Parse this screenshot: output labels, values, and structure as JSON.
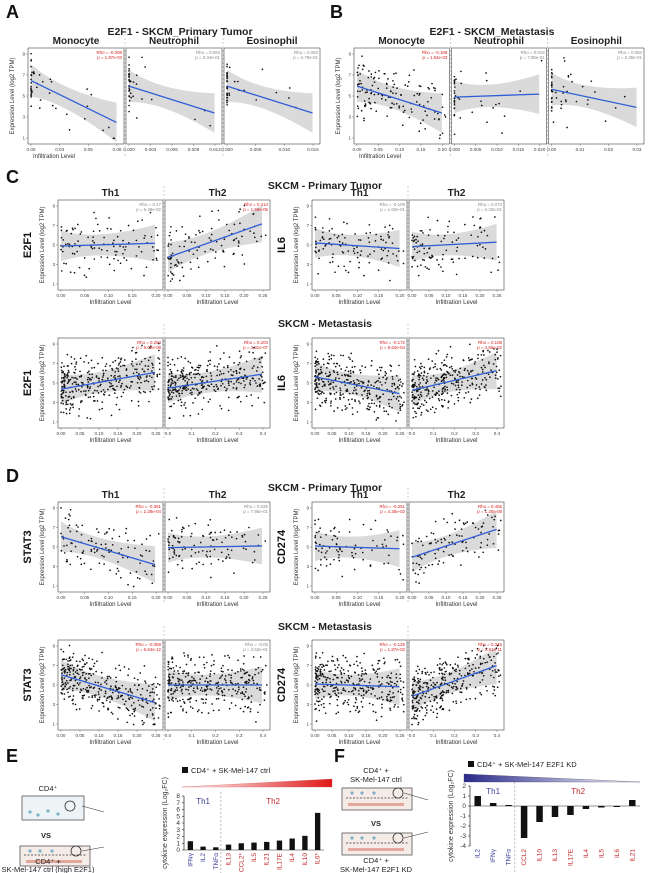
{
  "panels": {
    "A": {
      "letter": "A",
      "title": "E2F1 - SKCM_Primary Tumor"
    },
    "B": {
      "letter": "B",
      "title": "E2F1 - SKCM_Metastasis"
    },
    "C": {
      "letter": "C",
      "primary_title": "SKCM - Primary Tumor",
      "metastasis_title": "SKCM - Metastasis"
    },
    "D": {
      "letter": "D",
      "primary_title": "SKCM - Primary Tumor",
      "metastasis_title": "SKCM - Metastasis"
    },
    "E": {
      "letter": "E"
    },
    "F": {
      "letter": "F"
    }
  },
  "common": {
    "xlabel": "Infiltration Level",
    "ylabel": "Expression Level (log2 TPM)"
  },
  "colors": {
    "accent_blue": "#2f5fd6",
    "red": "#d62020",
    "band": "#d3d3d3",
    "th1": "#3b3b9a",
    "th2": "#c0262a"
  },
  "chart_data": [
    {
      "id": "A",
      "type": "scatter",
      "gene": "",
      "title": "E2F1 - SKCM_Primary Tumor",
      "xlabel": "Infiltration Level",
      "ylabel": "Expression Level (log2 TPM)",
      "facets": [
        {
          "name": "Monocyte",
          "rho": "Rho = -0.308",
          "p": "p = 1.87e-03",
          "sig": true,
          "xlim": [
            0,
            0.1
          ],
          "xticks": [
            "0.00",
            "0.03",
            "0.05",
            "0.08"
          ],
          "slope": -0.7,
          "n": 45,
          "seed": 11,
          "xdist": "left"
        },
        {
          "name": "Neutrophil",
          "rho": "Rho = 0.093",
          "p": "p = 3.34e-01",
          "sig": false,
          "xlim": [
            0,
            0.013
          ],
          "xticks": [
            "0.000",
            "0.003",
            "0.006",
            "0.009",
            "0.012"
          ],
          "slope": -0.45,
          "n": 40,
          "seed": 12,
          "xdist": "left"
        },
        {
          "name": "Eosinophil",
          "rho": "Rho = 0.063",
          "p": "p = 4.78e-01",
          "sig": false,
          "xlim": [
            0,
            0.016
          ],
          "xticks": [
            "0.000",
            "0.005",
            "0.010",
            "0.015"
          ],
          "slope": -0.45,
          "n": 40,
          "seed": 13,
          "xdist": "left"
        }
      ]
    },
    {
      "id": "B",
      "type": "scatter",
      "gene": "",
      "title": "E2F1 - SKCM_Metastasis",
      "xlabel": "Infiltration Level",
      "ylabel": "Expression Level (log2 TPM)",
      "facets": [
        {
          "name": "Monocyte",
          "rho": "Rho = -0.168",
          "p": "p = 1.54e-03",
          "sig": true,
          "xlim": [
            0,
            0.22
          ],
          "xticks": [
            "0.00",
            "0.05",
            "0.10",
            "0.15",
            "0.20"
          ],
          "slope": -0.45,
          "n": 140,
          "seed": 21,
          "xdist": "spread"
        },
        {
          "name": "Neutrophil",
          "rho": "Rho = 0.019",
          "p": "p = 7.85e-01",
          "sig": false,
          "xlim": [
            0,
            0.021
          ],
          "xticks": [
            "0.000",
            "0.005",
            "0.010",
            "0.015",
            "0.020"
          ],
          "slope": 0.05,
          "n": 40,
          "seed": 22,
          "xdist": "left"
        },
        {
          "name": "Eosinophil",
          "rho": "Rho = 0.084",
          "p": "p = 2.36e-01",
          "sig": false,
          "xlim": [
            0,
            0.032
          ],
          "xticks": [
            "0.00",
            "0.01",
            "0.02",
            "0.03"
          ],
          "slope": -0.3,
          "n": 50,
          "seed": 23,
          "xdist": "left"
        }
      ]
    },
    {
      "id": "C-prim-E2F1",
      "type": "scatter",
      "gene": "E2F1",
      "xlabel": "Infiltration Level",
      "ylabel": "Expression Level (log2 TPM)",
      "facets": [
        {
          "name": "Th1",
          "rho": "Rho = 0.17",
          "p": "p = 6.48e-02",
          "sig": false,
          "xlim": [
            0,
            0.21
          ],
          "xticks": [
            "0.00",
            "0.05",
            "0.10",
            "0.15",
            "0.20"
          ],
          "slope": 0.05,
          "n": 110,
          "seed": 31,
          "xdist": "spread"
        },
        {
          "name": "Th2",
          "rho": "Rho = 0.414",
          "p": "p = 1.59e-05",
          "sig": true,
          "xlim": [
            0,
            0.26
          ],
          "xticks": [
            "0.00",
            "0.05",
            "0.10",
            "0.15",
            "0.20",
            "0.25"
          ],
          "slope": 0.6,
          "n": 110,
          "seed": 32,
          "xdist": "spread"
        }
      ]
    },
    {
      "id": "C-prim-IL6",
      "type": "scatter",
      "gene": "IL6",
      "xlabel": "Infiltration Level",
      "ylabel": "Expression Level (log2 TPM)",
      "facets": [
        {
          "name": "Th1",
          "rho": "Rho = -0.109",
          "p": "p = 1.63e-01",
          "sig": false,
          "xlim": [
            0,
            0.21
          ],
          "xticks": [
            "0.00",
            "0.05",
            "0.10",
            "0.15",
            "0.20"
          ],
          "slope": -0.1,
          "n": 110,
          "seed": 33,
          "xdist": "spread"
        },
        {
          "name": "Th2",
          "rho": "Rho = 0.072",
          "p": "p = 4.33e-01",
          "sig": false,
          "xlim": [
            0,
            0.26
          ],
          "xticks": [
            "0.00",
            "0.05",
            "0.10",
            "0.15",
            "0.20",
            "0.25"
          ],
          "slope": 0.08,
          "n": 100,
          "seed": 34,
          "xdist": "spread"
        }
      ]
    },
    {
      "id": "C-met-E2F1",
      "type": "scatter",
      "gene": "E2F1",
      "xlabel": "Infiltration Level",
      "ylabel": "Expression Level (log2 TPM)",
      "facets": [
        {
          "name": "",
          "rho": "Rho = 0.284",
          "p": "p = 5.02e-08",
          "sig": true,
          "xlim": [
            0,
            0.26
          ],
          "xticks": [
            "0.00",
            "0.05",
            "0.10",
            "0.15",
            "0.20",
            "0.25"
          ],
          "slope": 0.3,
          "n": 330,
          "seed": 41,
          "xdist": "spread"
        },
        {
          "name": "",
          "rho": "Rho = 0.203",
          "p": "p = 3.31e-07",
          "sig": true,
          "xlim": [
            0,
            0.42
          ],
          "xticks": [
            "0.0",
            "0.1",
            "0.2",
            "0.3",
            "0.4"
          ],
          "slope": 0.25,
          "n": 330,
          "seed": 42,
          "xdist": "spread"
        }
      ]
    },
    {
      "id": "C-met-IL6",
      "type": "scatter",
      "gene": "IL6",
      "xlabel": "Infiltration Level",
      "ylabel": "Expression Level (log2 TPM)",
      "facets": [
        {
          "name": "",
          "rho": "Rho = -0.172",
          "p": "p = 9.64e-04",
          "sig": true,
          "xlim": [
            0,
            0.26
          ],
          "xticks": [
            "0.00",
            "0.05",
            "0.10",
            "0.15",
            "0.20",
            "0.25"
          ],
          "slope": -0.3,
          "n": 330,
          "seed": 43,
          "xdist": "spread"
        },
        {
          "name": "",
          "rho": "Rho = 0.108",
          "p": "p = 4.66e-02",
          "sig": true,
          "xlim": [
            0,
            0.42
          ],
          "xticks": [
            "0.0",
            "0.1",
            "0.2",
            "0.3",
            "0.4"
          ],
          "slope": 0.35,
          "n": 330,
          "seed": 44,
          "xdist": "spread"
        }
      ]
    },
    {
      "id": "D-prim-STAT3",
      "type": "scatter",
      "gene": "STAT3",
      "xlabel": "Infiltration Level",
      "ylabel": "Expression Level (log2 TPM)",
      "facets": [
        {
          "name": "Th1",
          "rho": "Rho = -0.361",
          "p": "p = 2.28e-04",
          "sig": true,
          "xlim": [
            0,
            0.21
          ],
          "xticks": [
            "0.00",
            "0.05",
            "0.10",
            "0.15",
            "0.20"
          ],
          "slope": -0.5,
          "n": 110,
          "seed": 51,
          "xdist": "spread"
        },
        {
          "name": "Th2",
          "rho": "Rho = 0.026",
          "p": "p = 7.95e-01",
          "sig": false,
          "xlim": [
            0,
            0.26
          ],
          "xticks": [
            "0.00",
            "0.05",
            "0.10",
            "0.15",
            "0.20",
            "0.25"
          ],
          "slope": 0.03,
          "n": 110,
          "seed": 52,
          "xdist": "spread"
        }
      ]
    },
    {
      "id": "D-prim-CD274",
      "type": "scatter",
      "gene": "CD274",
      "xlabel": "Infiltration Level",
      "ylabel": "Expression Level (log2 TPM)",
      "facets": [
        {
          "name": "Th1",
          "rho": "Rho = -0.251",
          "p": "p = 4.30e-02",
          "sig": true,
          "xlim": [
            0,
            0.21
          ],
          "xticks": [
            "0.00",
            "0.05",
            "0.10",
            "0.15",
            "0.20"
          ],
          "slope": -0.05,
          "n": 90,
          "seed": 53,
          "xdist": "spread"
        },
        {
          "name": "Th2",
          "rho": "Rho = 0.455",
          "p": "p = 1.30e-08",
          "sig": true,
          "xlim": [
            0,
            0.26
          ],
          "xticks": [
            "0.00",
            "0.05",
            "0.10",
            "0.15",
            "0.20",
            "0.25"
          ],
          "slope": 0.5,
          "n": 110,
          "seed": 54,
          "xdist": "spread"
        }
      ]
    },
    {
      "id": "D-met-STAT3",
      "type": "scatter",
      "gene": "STAT3",
      "xlabel": "Infiltration Level",
      "ylabel": "Expression Level (log2 TPM)",
      "facets": [
        {
          "name": "",
          "rho": "Rho = -0.358",
          "p": "p = 6.64e-12",
          "sig": true,
          "xlim": [
            0,
            0.26
          ],
          "xticks": [
            "0.00",
            "0.05",
            "0.10",
            "0.15",
            "0.20",
            "0.25"
          ],
          "slope": -0.5,
          "n": 330,
          "seed": 61,
          "xdist": "spread"
        },
        {
          "name": "",
          "rho": "Rho = -0.05",
          "p": "p = 3.52e-01",
          "sig": false,
          "xlim": [
            0,
            0.42
          ],
          "xticks": [
            "0.0",
            "0.1",
            "0.2",
            "0.3",
            "0.4"
          ],
          "slope": 0.0,
          "n": 330,
          "seed": 62,
          "xdist": "spread"
        }
      ]
    },
    {
      "id": "D-met-CD274",
      "type": "scatter",
      "gene": "CD274",
      "xlabel": "Infiltration Level",
      "ylabel": "Expression Level (log2 TPM)",
      "facets": [
        {
          "name": "",
          "rho": "Rho = -0.125",
          "p": "p = 1.87e-02",
          "sig": true,
          "xlim": [
            0,
            0.26
          ],
          "xticks": [
            "0.00",
            "0.05",
            "0.10",
            "0.15",
            "0.20",
            "0.25"
          ],
          "slope": -0.05,
          "n": 330,
          "seed": 63,
          "xdist": "spread"
        },
        {
          "name": "",
          "rho": "Rho = 0.345",
          "p": "p = 2.61e-11",
          "sig": true,
          "xlim": [
            0,
            0.42
          ],
          "xticks": [
            "0.0",
            "0.1",
            "0.2",
            "0.3",
            "0.4"
          ],
          "slope": 0.55,
          "n": 330,
          "seed": 64,
          "xdist": "spread"
        }
      ]
    },
    {
      "id": "E-bar",
      "type": "bar",
      "legend": "CD4⁺ + SK-Mel-147 ctrl",
      "ylabel": "cytokine expression (Log₂FC)",
      "ylim": [
        0,
        8
      ],
      "yticks": [
        0,
        1,
        2,
        3,
        4,
        5,
        6,
        7,
        8
      ],
      "group1": "Th1",
      "group2": "Th2",
      "categories": [
        "IFNγ",
        "IL2",
        "TNFα",
        "IL13",
        "CCL2*",
        "IL5",
        "IL21",
        "IL17E",
        "IL4",
        "IL10",
        "IL6*"
      ],
      "groups": [
        "th1",
        "th1",
        "th1",
        "th2",
        "th2",
        "th2",
        "th2",
        "th2",
        "th2",
        "th2",
        "th2"
      ],
      "values": [
        1.3,
        0.5,
        0.4,
        0.8,
        1.0,
        1.1,
        1.2,
        1.4,
        1.7,
        2.1,
        5.5
      ]
    },
    {
      "id": "F-bar",
      "type": "bar",
      "legend": "CD4⁺ + SK-Mel-147 E2F1 KD",
      "ylabel": "cytokine expression (Log₂FC)",
      "ylim": [
        -4,
        2
      ],
      "yticks": [
        -4,
        -3,
        -2,
        -1,
        0,
        1,
        2
      ],
      "group1": "Th1",
      "group2": "Th2",
      "categories": [
        "IL2",
        "IFNγ",
        "TNFα",
        "CCL2",
        "IL10",
        "IL13",
        "IL17E",
        "IL4",
        "IL5",
        "IL6",
        "IL21"
      ],
      "groups": [
        "th1",
        "th1",
        "th1",
        "th2",
        "th2",
        "th2",
        "th2",
        "th2",
        "th2",
        "th2",
        "th2"
      ],
      "values": [
        1.0,
        0.3,
        0.1,
        -3.2,
        -1.6,
        -1.1,
        -0.9,
        -0.3,
        -0.15,
        -0.1,
        0.6
      ]
    }
  ],
  "schematic_E": {
    "top_label": "CD4⁺",
    "vs": "VS",
    "bottom_label1": "CD4⁺ +",
    "bottom_label2": "SK-Mel-147 ctrl (high E2F1)"
  },
  "schematic_F": {
    "top_label1": "CD4⁺ +",
    "top_label2": "SK-Mel-147 ctrl",
    "vs": "VS",
    "bottom_label1": "CD4⁺ +",
    "bottom_label2": "SK-Mel-147 E2F1 KD"
  }
}
